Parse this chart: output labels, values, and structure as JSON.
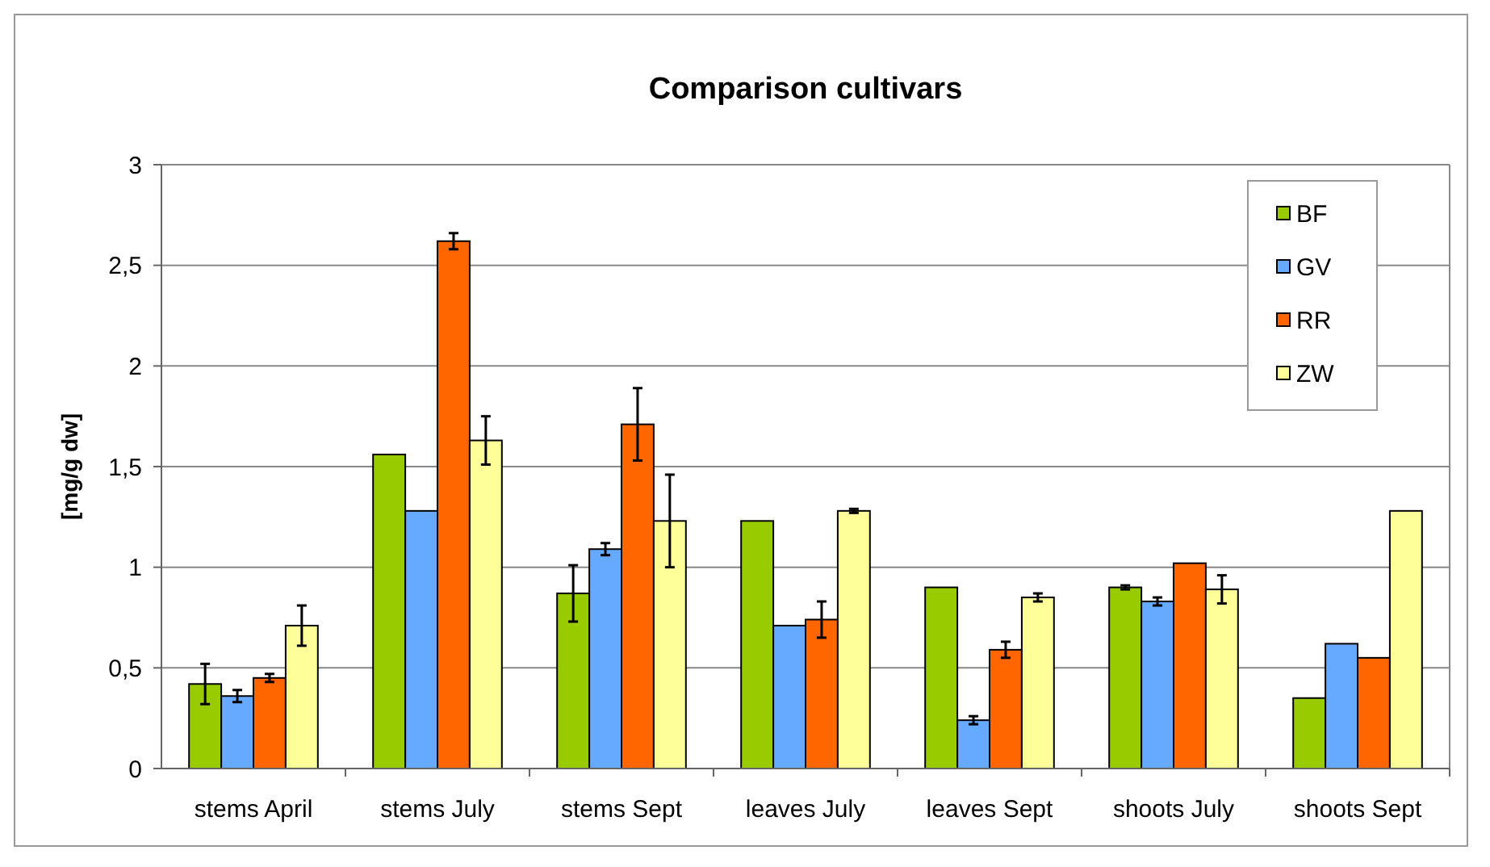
{
  "chart_data": {
    "type": "bar",
    "title": "Comparison cultivars",
    "ylabel": "[mg/g dw]",
    "categories": [
      "stems April",
      "stems July",
      "stems Sept",
      "leaves July",
      "leaves Sept",
      "shoots July",
      "shoots Sept"
    ],
    "series": [
      {
        "name": "BF",
        "color": "#99cc00",
        "values": [
          0.42,
          1.56,
          0.87,
          1.23,
          0.9,
          0.9,
          0.35
        ],
        "errors": [
          0.1,
          null,
          0.14,
          null,
          null,
          0.01,
          null
        ]
      },
      {
        "name": "GV",
        "color": "#66aaff",
        "values": [
          0.36,
          1.28,
          1.09,
          0.71,
          0.24,
          0.83,
          0.62
        ],
        "errors": [
          0.03,
          null,
          0.03,
          null,
          0.02,
          0.02,
          null
        ]
      },
      {
        "name": "RR",
        "color": "#ff6600",
        "values": [
          0.45,
          2.62,
          1.71,
          0.74,
          0.59,
          1.02,
          0.55
        ],
        "errors": [
          0.02,
          0.04,
          0.18,
          0.09,
          0.04,
          null,
          null
        ]
      },
      {
        "name": "ZW",
        "color": "#ffff99",
        "values": [
          0.71,
          1.63,
          1.23,
          1.28,
          0.85,
          0.89,
          1.28
        ],
        "errors": [
          0.1,
          0.12,
          0.23,
          0.01,
          0.02,
          0.07,
          null
        ]
      }
    ],
    "ylim": [
      0,
      3
    ],
    "yticks": [
      0,
      {
        "value": 0.5,
        "label": "0,5"
      },
      1,
      {
        "value": 1.5,
        "label": "1,5"
      },
      2,
      {
        "value": 2.5,
        "label": "2,5"
      },
      3
    ],
    "grid": "y",
    "legend": "top right"
  }
}
